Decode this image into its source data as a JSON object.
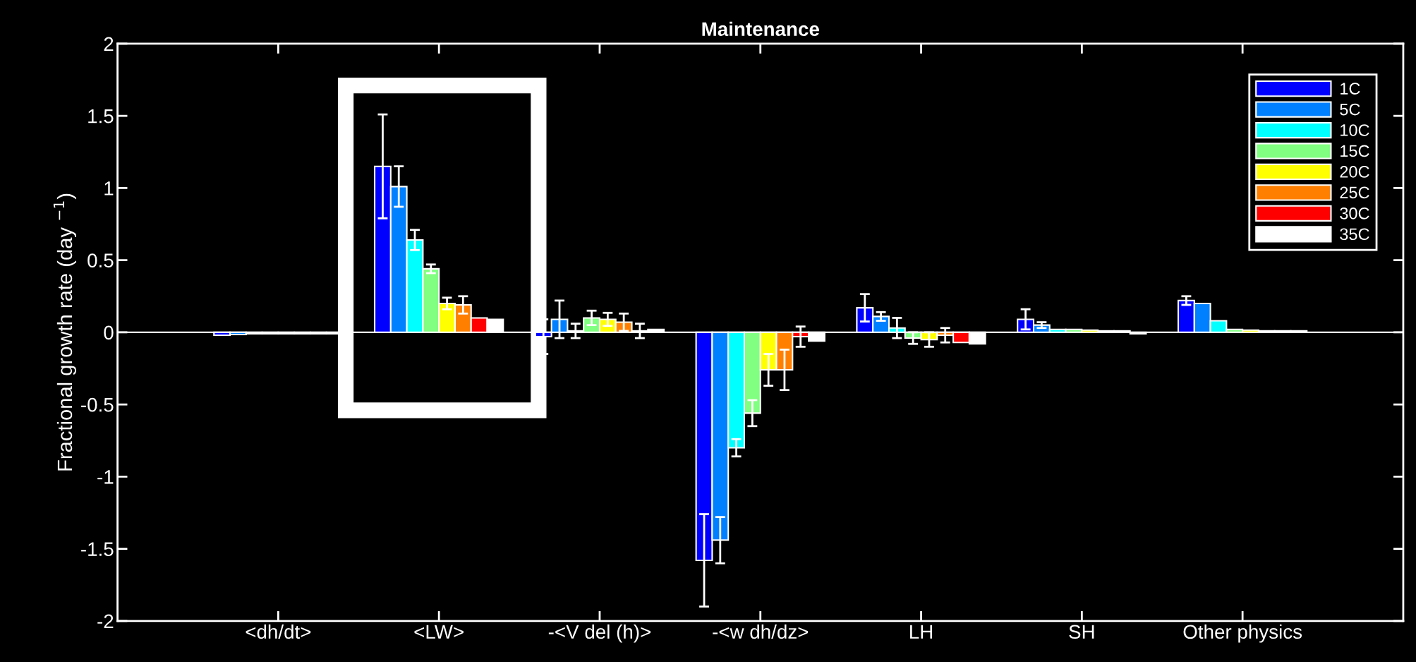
{
  "chart_data": {
    "type": "bar",
    "title": "Maintenance",
    "ylabel": "Fractional growth rate (day $^{−1}$)",
    "categories": [
      "<dh/dt>",
      "<LW>",
      "-<V del (h)>",
      "-<w dh/dz>",
      "LH",
      "SH",
      "Other physics"
    ],
    "series": [
      {
        "name": "1C",
        "color": "#0000ff",
        "values": [
          -0.02,
          1.15,
          -0.03,
          -1.58,
          0.17,
          0.09,
          0.22
        ],
        "errors": [
          null,
          0.36,
          0.12,
          0.32,
          0.095,
          0.07,
          0.03
        ]
      },
      {
        "name": "5C",
        "color": "#0080ff",
        "values": [
          -0.015,
          1.01,
          0.09,
          -1.44,
          0.11,
          0.05,
          0.2
        ],
        "errors": [
          null,
          0.14,
          0.13,
          0.16,
          0.03,
          0.02,
          null
        ]
      },
      {
        "name": "10C",
        "color": "#00ffff",
        "values": [
          -0.01,
          0.64,
          0.01,
          -0.8,
          0.03,
          0.02,
          0.08
        ],
        "errors": [
          null,
          0.07,
          0.05,
          0.06,
          0.07,
          null,
          null
        ]
      },
      {
        "name": "15C",
        "color": "#80ff80",
        "values": [
          -0.01,
          0.44,
          0.1,
          -0.56,
          -0.04,
          0.02,
          0.02
        ],
        "errors": [
          null,
          0.03,
          0.05,
          0.09,
          0.04,
          null,
          null
        ]
      },
      {
        "name": "20C",
        "color": "#ffff00",
        "values": [
          -0.01,
          0.2,
          0.09,
          -0.26,
          -0.05,
          0.015,
          0.015
        ],
        "errors": [
          null,
          0.04,
          0.045,
          0.11,
          0.05,
          null,
          null
        ]
      },
      {
        "name": "25C",
        "color": "#ff8000",
        "values": [
          -0.01,
          0.19,
          0.07,
          -0.26,
          -0.02,
          0.01,
          0.01
        ],
        "errors": [
          null,
          0.06,
          0.06,
          0.14,
          0.05,
          null,
          null
        ]
      },
      {
        "name": "30C",
        "color": "#ff0000",
        "values": [
          -0.01,
          0.1,
          0.01,
          -0.03,
          -0.07,
          0.01,
          0.01
        ],
        "errors": [
          null,
          null,
          0.05,
          0.07,
          null,
          null,
          null
        ]
      },
      {
        "name": "35C",
        "color": "#ffffff",
        "values": [
          -0.01,
          0.09,
          0.02,
          -0.06,
          -0.08,
          -0.01,
          0.01
        ],
        "errors": [
          null,
          null,
          null,
          null,
          null,
          null,
          null
        ]
      }
    ],
    "ylim": [
      -2,
      2
    ],
    "yticks": [
      -2,
      -1.5,
      -1,
      -0.5,
      0,
      0.5,
      1,
      1.5,
      2
    ],
    "ref_lines": [
      {
        "axis": "y",
        "value": 0,
        "color": "#ffffff"
      }
    ],
    "legend": "top right"
  }
}
